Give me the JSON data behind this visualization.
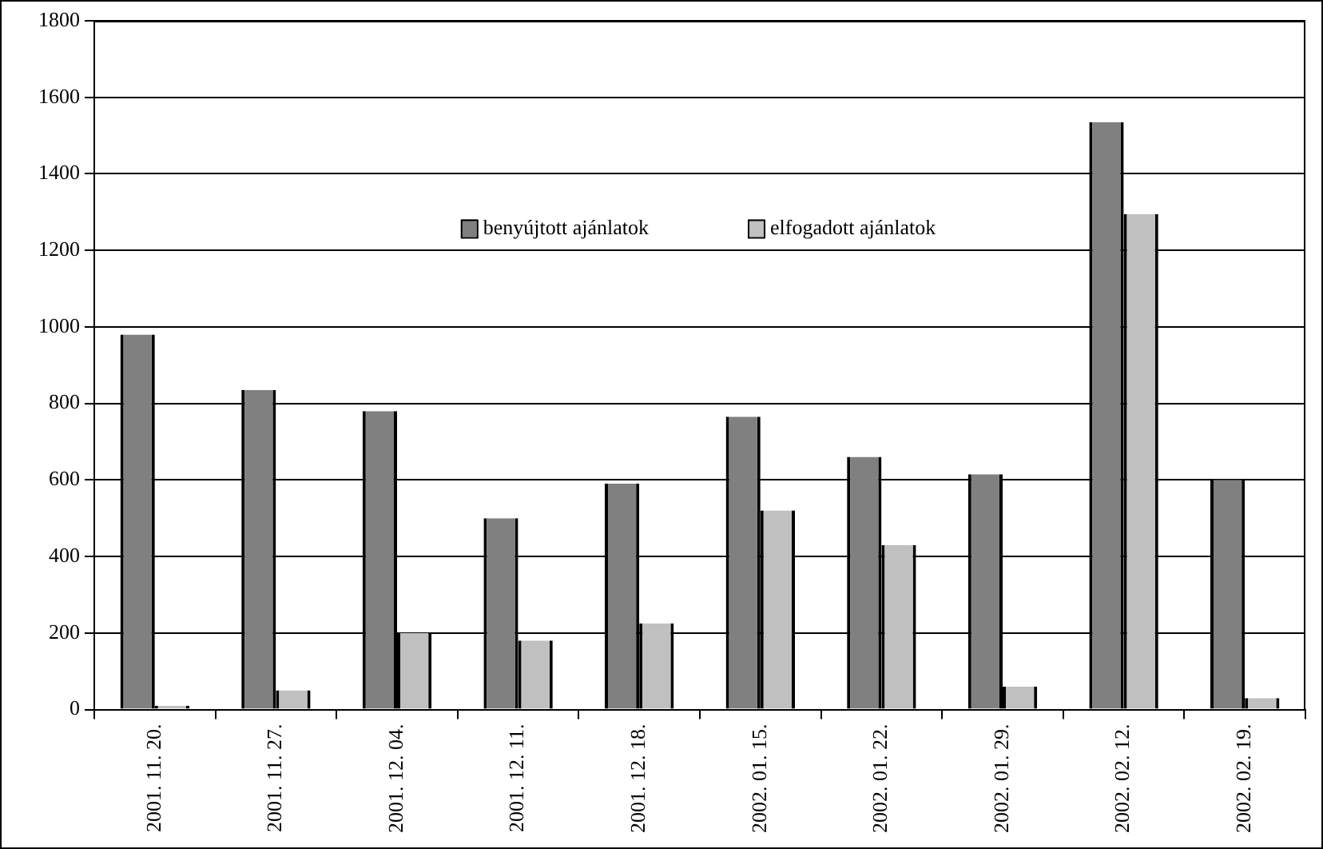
{
  "chart_data": {
    "type": "bar",
    "categories": [
      "2001. 11. 20.",
      "2001. 11. 27.",
      "2001. 12. 04.",
      "2001. 12. 11.",
      "2001. 12. 18.",
      "2002. 01. 15.",
      "2002. 01. 22.",
      "2002. 01. 29.",
      "2002. 02. 12.",
      "2002. 02. 19."
    ],
    "series": [
      {
        "name": "benyújtott ajánlatok",
        "color": "#808080",
        "values": [
          980,
          835,
          780,
          500,
          590,
          765,
          660,
          615,
          1535,
          600
        ]
      },
      {
        "name": "elfogadott ajánlatok",
        "color": "#c0c0c0",
        "values": [
          10,
          50,
          200,
          180,
          225,
          520,
          430,
          60,
          1295,
          30
        ]
      }
    ],
    "ylim": [
      0,
      1800
    ],
    "yticks": [
      0,
      200,
      400,
      600,
      800,
      1000,
      1200,
      1400,
      1600,
      1800
    ],
    "grid": "y",
    "legend": "top"
  }
}
